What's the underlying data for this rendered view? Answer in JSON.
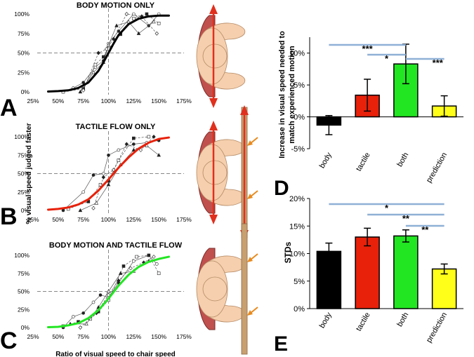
{
  "panel_letters": [
    "A",
    "B",
    "C",
    "D",
    "E"
  ],
  "colors": {
    "body": "#000000",
    "tactile": "#e8210a",
    "both": "#22e622",
    "prediction": "#ffff1a",
    "sig_line": "#8fb0d6",
    "arm": "#f5cfae",
    "chair": "#c0504d",
    "arrow": "#e0301e",
    "finger_arrow": "#e88a1e",
    "stick": "#c8a070"
  },
  "chart_data": [
    {
      "type": "line",
      "id": "A",
      "title": "BODY MOTION ONLY",
      "xlabel": "",
      "ylabel": "",
      "xlim": [
        25,
        175
      ],
      "ylim": [
        0,
        100
      ],
      "xticks": [
        "25%",
        "50%",
        "75%",
        "100%",
        "125%",
        "150%",
        "175%"
      ],
      "yticks": [
        "0%",
        "25%",
        "50%",
        "75%",
        "100%"
      ],
      "ref_lines": {
        "x": 100,
        "y": 50
      },
      "fit_color": "#000000",
      "fit": {
        "x": [
          40,
          50,
          60,
          70,
          80,
          90,
          95,
          100,
          105,
          110,
          120,
          130,
          140,
          150,
          160
        ],
        "y": [
          0.5,
          1,
          2,
          5,
          12,
          27,
          38,
          50,
          62,
          73,
          87,
          94,
          97,
          98,
          98
        ]
      },
      "series": [
        {
          "name": "s1",
          "x": [
            55,
            65,
            75,
            87,
            95,
            100,
            110,
            125,
            140,
            150
          ],
          "y": [
            0,
            5,
            12,
            32,
            40,
            62,
            78,
            100,
            85,
            100
          ]
        },
        {
          "name": "s2",
          "x": [
            55,
            75,
            87,
            95,
            100,
            112,
            125,
            138,
            150
          ],
          "y": [
            0,
            4,
            35,
            45,
            55,
            74,
            94,
            100,
            88
          ]
        },
        {
          "name": "s3",
          "x": [
            72,
            85,
            95,
            100,
            108,
            120,
            130,
            145
          ],
          "y": [
            0,
            25,
            38,
            60,
            85,
            90,
            75,
            90
          ]
        },
        {
          "name": "s4",
          "x": [
            75,
            90,
            98,
            105,
            118,
            133,
            148
          ],
          "y": [
            2,
            50,
            55,
            68,
            100,
            97,
            75
          ]
        }
      ]
    },
    {
      "type": "line",
      "id": "B",
      "title": "TACTILE FLOW ONLY",
      "xlabel": "",
      "ylabel": "% visual speed judged faster",
      "xlim": [
        25,
        175
      ],
      "ylim": [
        0,
        100
      ],
      "xticks": [
        "25%",
        "50%",
        "75%",
        "100%",
        "125%",
        "150%",
        "175%"
      ],
      "yticks": [
        "0%",
        "25%",
        "50%",
        "75%",
        "100%"
      ],
      "ref_lines": {
        "x": 100,
        "y": 50
      },
      "fit_color": "#e8210a",
      "fit": {
        "x": [
          40,
          50,
          60,
          70,
          80,
          90,
          100,
          110,
          120,
          130,
          140,
          150,
          160
        ],
        "y": [
          1,
          2,
          4,
          8,
          15,
          27,
          42,
          58,
          72,
          84,
          92,
          97,
          99
        ]
      },
      "series": [
        {
          "name": "s1",
          "x": [
            55,
            75,
            85,
            95,
            100,
            110,
            125,
            138,
            150
          ],
          "y": [
            0,
            25,
            48,
            50,
            75,
            82,
            90,
            92,
            95
          ]
        },
        {
          "name": "s2",
          "x": [
            60,
            80,
            92,
            100,
            110,
            125,
            140
          ],
          "y": [
            2,
            12,
            35,
            40,
            68,
            98,
            100
          ]
        },
        {
          "name": "s3",
          "x": [
            72,
            88,
            100,
            112,
            125,
            138,
            150
          ],
          "y": [
            0,
            10,
            35,
            62,
            82,
            88,
            75
          ]
        },
        {
          "name": "s4",
          "x": [
            85,
            95,
            105,
            118,
            132,
            145
          ],
          "y": [
            3,
            45,
            55,
            90,
            82,
            100
          ]
        }
      ]
    },
    {
      "type": "line",
      "id": "C",
      "title": "BODY MOTION AND TACTILE FLOW",
      "xlabel": "Ratio of visual speed to chair speed",
      "ylabel": "",
      "xlim": [
        25,
        175
      ],
      "ylim": [
        0,
        100
      ],
      "xticks": [
        "25%",
        "50%",
        "75%",
        "100%",
        "125%",
        "150%",
        "175%"
      ],
      "yticks": [
        "0%",
        "25%",
        "50%",
        "75%",
        "100%"
      ],
      "ref_lines": {
        "x": 100,
        "y": 50
      },
      "fit_color": "#22e622",
      "fit": {
        "x": [
          40,
          50,
          60,
          70,
          80,
          90,
          100,
          110,
          120,
          130,
          140,
          150,
          160
        ],
        "y": [
          0.5,
          1,
          3,
          6,
          13,
          24,
          40,
          58,
          73,
          84,
          91,
          95,
          98
        ]
      },
      "series": [
        {
          "name": "s1",
          "x": [
            55,
            65,
            75,
            85,
            92,
            100,
            110,
            125,
            140,
            148
          ],
          "y": [
            0,
            15,
            20,
            35,
            45,
            42,
            62,
            92,
            100,
            88
          ]
        },
        {
          "name": "s2",
          "x": [
            55,
            70,
            82,
            90,
            100,
            115,
            128,
            140,
            150
          ],
          "y": [
            2,
            8,
            12,
            22,
            38,
            85,
            98,
            100,
            75
          ]
        },
        {
          "name": "s3",
          "x": [
            62,
            78,
            90,
            100,
            112,
            125,
            140
          ],
          "y": [
            5,
            5,
            28,
            50,
            75,
            78,
            92
          ]
        },
        {
          "name": "s4",
          "x": [
            72,
            88,
            100,
            110,
            122,
            135,
            145
          ],
          "y": [
            0,
            20,
            45,
            65,
            82,
            90,
            98
          ]
        }
      ]
    },
    {
      "type": "bar",
      "id": "D",
      "title": "",
      "ylabel": "Increase in visual speed needed to match experienced motion",
      "categories": [
        "body",
        "tactile",
        "both",
        "prediction"
      ],
      "values": [
        -1.3,
        3.4,
        8.3,
        1.7
      ],
      "errors": [
        1.5,
        2.5,
        3.1,
        1.6
      ],
      "ylim": [
        -5,
        12.5
      ],
      "yticks": [
        "-5%",
        "0%",
        "5%",
        "10%"
      ],
      "significance": [
        {
          "from": "body",
          "to": "both",
          "label": "***"
        },
        {
          "from": "tactile",
          "to": "both",
          "label": "*"
        },
        {
          "from": "both",
          "to": "prediction",
          "label": "***"
        }
      ]
    },
    {
      "type": "bar",
      "id": "E",
      "title": "",
      "ylabel": "STDs",
      "categories": [
        "body",
        "tactile",
        "both",
        "prediction"
      ],
      "values": [
        10.4,
        13.0,
        13.2,
        7.2
      ],
      "errors": [
        1.5,
        1.6,
        1.1,
        0.9
      ],
      "ylim": [
        0,
        20
      ],
      "yticks": [
        "0%",
        "5%",
        "10%",
        "15%",
        "20%"
      ],
      "significance": [
        {
          "from": "body",
          "to": "prediction",
          "label": "*"
        },
        {
          "from": "tactile",
          "to": "prediction",
          "label": "**"
        },
        {
          "from": "both",
          "to": "prediction",
          "label": "**"
        }
      ]
    }
  ]
}
